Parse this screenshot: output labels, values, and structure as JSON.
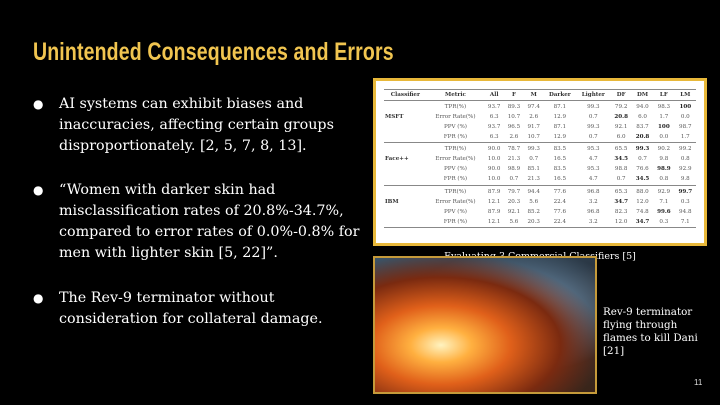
{
  "slide": {
    "title": "Unintended Consequences and Errors",
    "bullets": [
      {
        "marker": "●",
        "text": "AI systems can exhibit biases and inaccuracies, affecting certain groups disproportionately. [2, 5, 7, 8, 13]."
      },
      {
        "marker": "●",
        "text": "“Women with darker skin had misclassification rates of 20.8%-34.7%, compared to error rates of 0.0%-0.8% for men with lighter skin [5, 22]”."
      },
      {
        "marker": "●",
        "text": "The Rev-9 terminator without consideration for collateral damage."
      }
    ],
    "table_caption": "Evaluating 3 Commercial Classifiers [5]",
    "image_caption": "Rev-9 terminator flying through flames to kill Dani [21]",
    "page_number": "11",
    "colors": {
      "title": "#f1c550",
      "background": "#000000",
      "frame": "#e8b83a"
    }
  },
  "table": {
    "headers": [
      "Classifier",
      "Metric",
      "All",
      "F",
      "M",
      "Darker",
      "Lighter",
      "DF",
      "DM",
      "LF",
      "LM"
    ],
    "groups": [
      {
        "classifier": "MSFT",
        "rows": [
          {
            "metric": "TPR(%)",
            "values": [
              "93.7",
              "89.3",
              "97.4",
              "87.1",
              "99.3",
              "79.2",
              "94.0",
              "98.3",
              "100"
            ],
            "bold": [
              8
            ]
          },
          {
            "metric": "Error Rate(%)",
            "values": [
              "6.3",
              "10.7",
              "2.6",
              "12.9",
              "0.7",
              "20.8",
              "6.0",
              "1.7",
              "0.0"
            ],
            "bold": [
              5
            ]
          },
          {
            "metric": "PPV (%)",
            "values": [
              "93.7",
              "96.5",
              "91.7",
              "87.1",
              "99.3",
              "92.1",
              "83.7",
              "100",
              "98.7"
            ],
            "bold": [
              7
            ]
          },
          {
            "metric": "FPR (%)",
            "values": [
              "6.3",
              "2.6",
              "10.7",
              "12.9",
              "0.7",
              "6.0",
              "20.8",
              "0.0",
              "1.7"
            ],
            "bold": [
              6
            ]
          }
        ]
      },
      {
        "classifier": "Face++",
        "rows": [
          {
            "metric": "TPR(%)",
            "values": [
              "90.0",
              "78.7",
              "99.3",
              "83.5",
              "95.3",
              "65.5",
              "99.3",
              "90.2",
              "99.2"
            ],
            "bold": [
              6
            ]
          },
          {
            "metric": "Error Rate(%)",
            "values": [
              "10.0",
              "21.3",
              "0.7",
              "16.5",
              "4.7",
              "34.5",
              "0.7",
              "9.8",
              "0.8"
            ],
            "bold": [
              5
            ]
          },
          {
            "metric": "PPV (%)",
            "values": [
              "90.0",
              "98.9",
              "85.1",
              "83.5",
              "95.3",
              "98.8",
              "76.6",
              "98.9",
              "92.9"
            ],
            "bold": [
              7
            ]
          },
          {
            "metric": "FPR (%)",
            "values": [
              "10.0",
              "0.7",
              "21.3",
              "16.5",
              "4.7",
              "0.7",
              "34.5",
              "0.8",
              "9.8"
            ],
            "bold": [
              6
            ]
          }
        ]
      },
      {
        "classifier": "IBM",
        "rows": [
          {
            "metric": "TPR(%)",
            "values": [
              "87.9",
              "79.7",
              "94.4",
              "77.6",
              "96.8",
              "65.3",
              "88.0",
              "92.9",
              "99.7"
            ],
            "bold": [
              8
            ]
          },
          {
            "metric": "Error Rate(%)",
            "values": [
              "12.1",
              "20.3",
              "5.6",
              "22.4",
              "3.2",
              "34.7",
              "12.0",
              "7.1",
              "0.3"
            ],
            "bold": [
              5
            ]
          },
          {
            "metric": "PPV (%)",
            "values": [
              "87.9",
              "92.1",
              "85.2",
              "77.6",
              "96.8",
              "82.3",
              "74.8",
              "99.6",
              "94.8"
            ],
            "bold": [
              7
            ]
          },
          {
            "metric": "FPR (%)",
            "values": [
              "12.1",
              "5.6",
              "20.3",
              "22.4",
              "3.2",
              "12.0",
              "34.7",
              "0.3",
              "7.1"
            ],
            "bold": [
              6
            ]
          }
        ]
      }
    ]
  }
}
